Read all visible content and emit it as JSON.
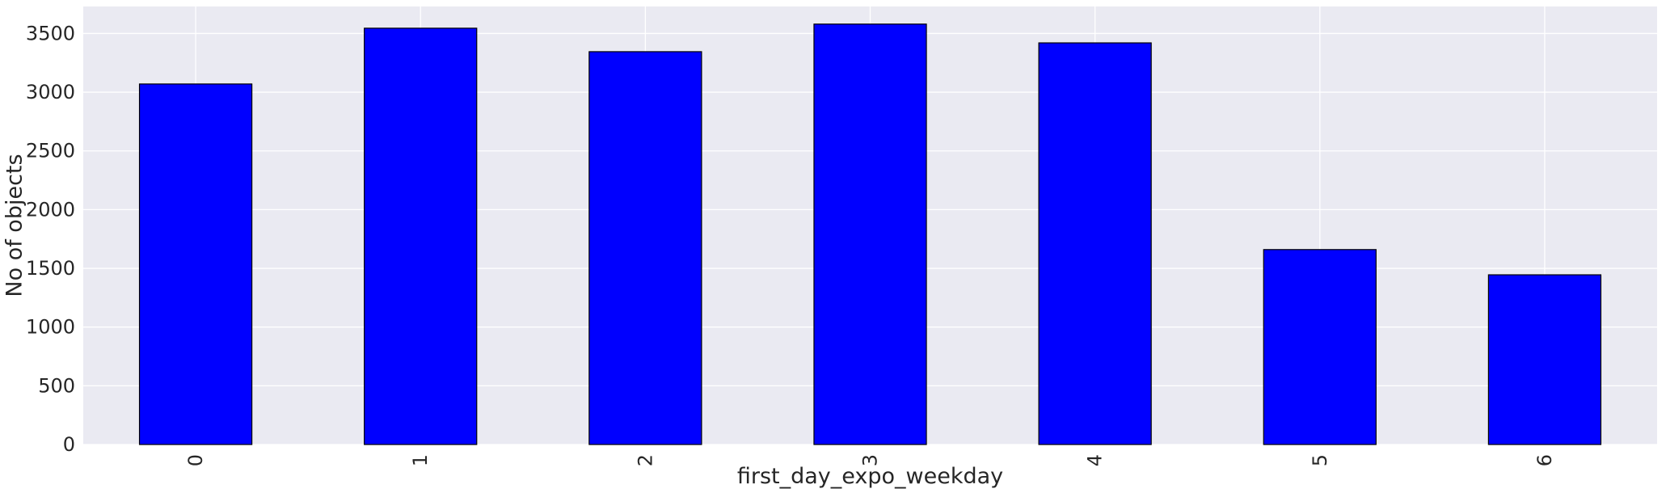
{
  "chart_data": {
    "type": "bar",
    "categories": [
      "0",
      "1",
      "2",
      "3",
      "4",
      "5",
      "6"
    ],
    "values": [
      3070,
      3545,
      3345,
      3580,
      3420,
      1660,
      1445
    ],
    "xlabel": "first_day_expo_weekday",
    "ylabel": "No of objects",
    "ylim": [
      0,
      3730
    ],
    "yticks": [
      0,
      500,
      1000,
      1500,
      2000,
      2500,
      3000,
      3500
    ],
    "grid": true,
    "legend": "none",
    "x_tick_rotation": "vertical",
    "colors": {
      "bar_fill": "#0000ff",
      "bar_edge": "#000000",
      "plot_background": "#eaeaf2",
      "grid": "#ffffff",
      "text": "#262626"
    }
  }
}
